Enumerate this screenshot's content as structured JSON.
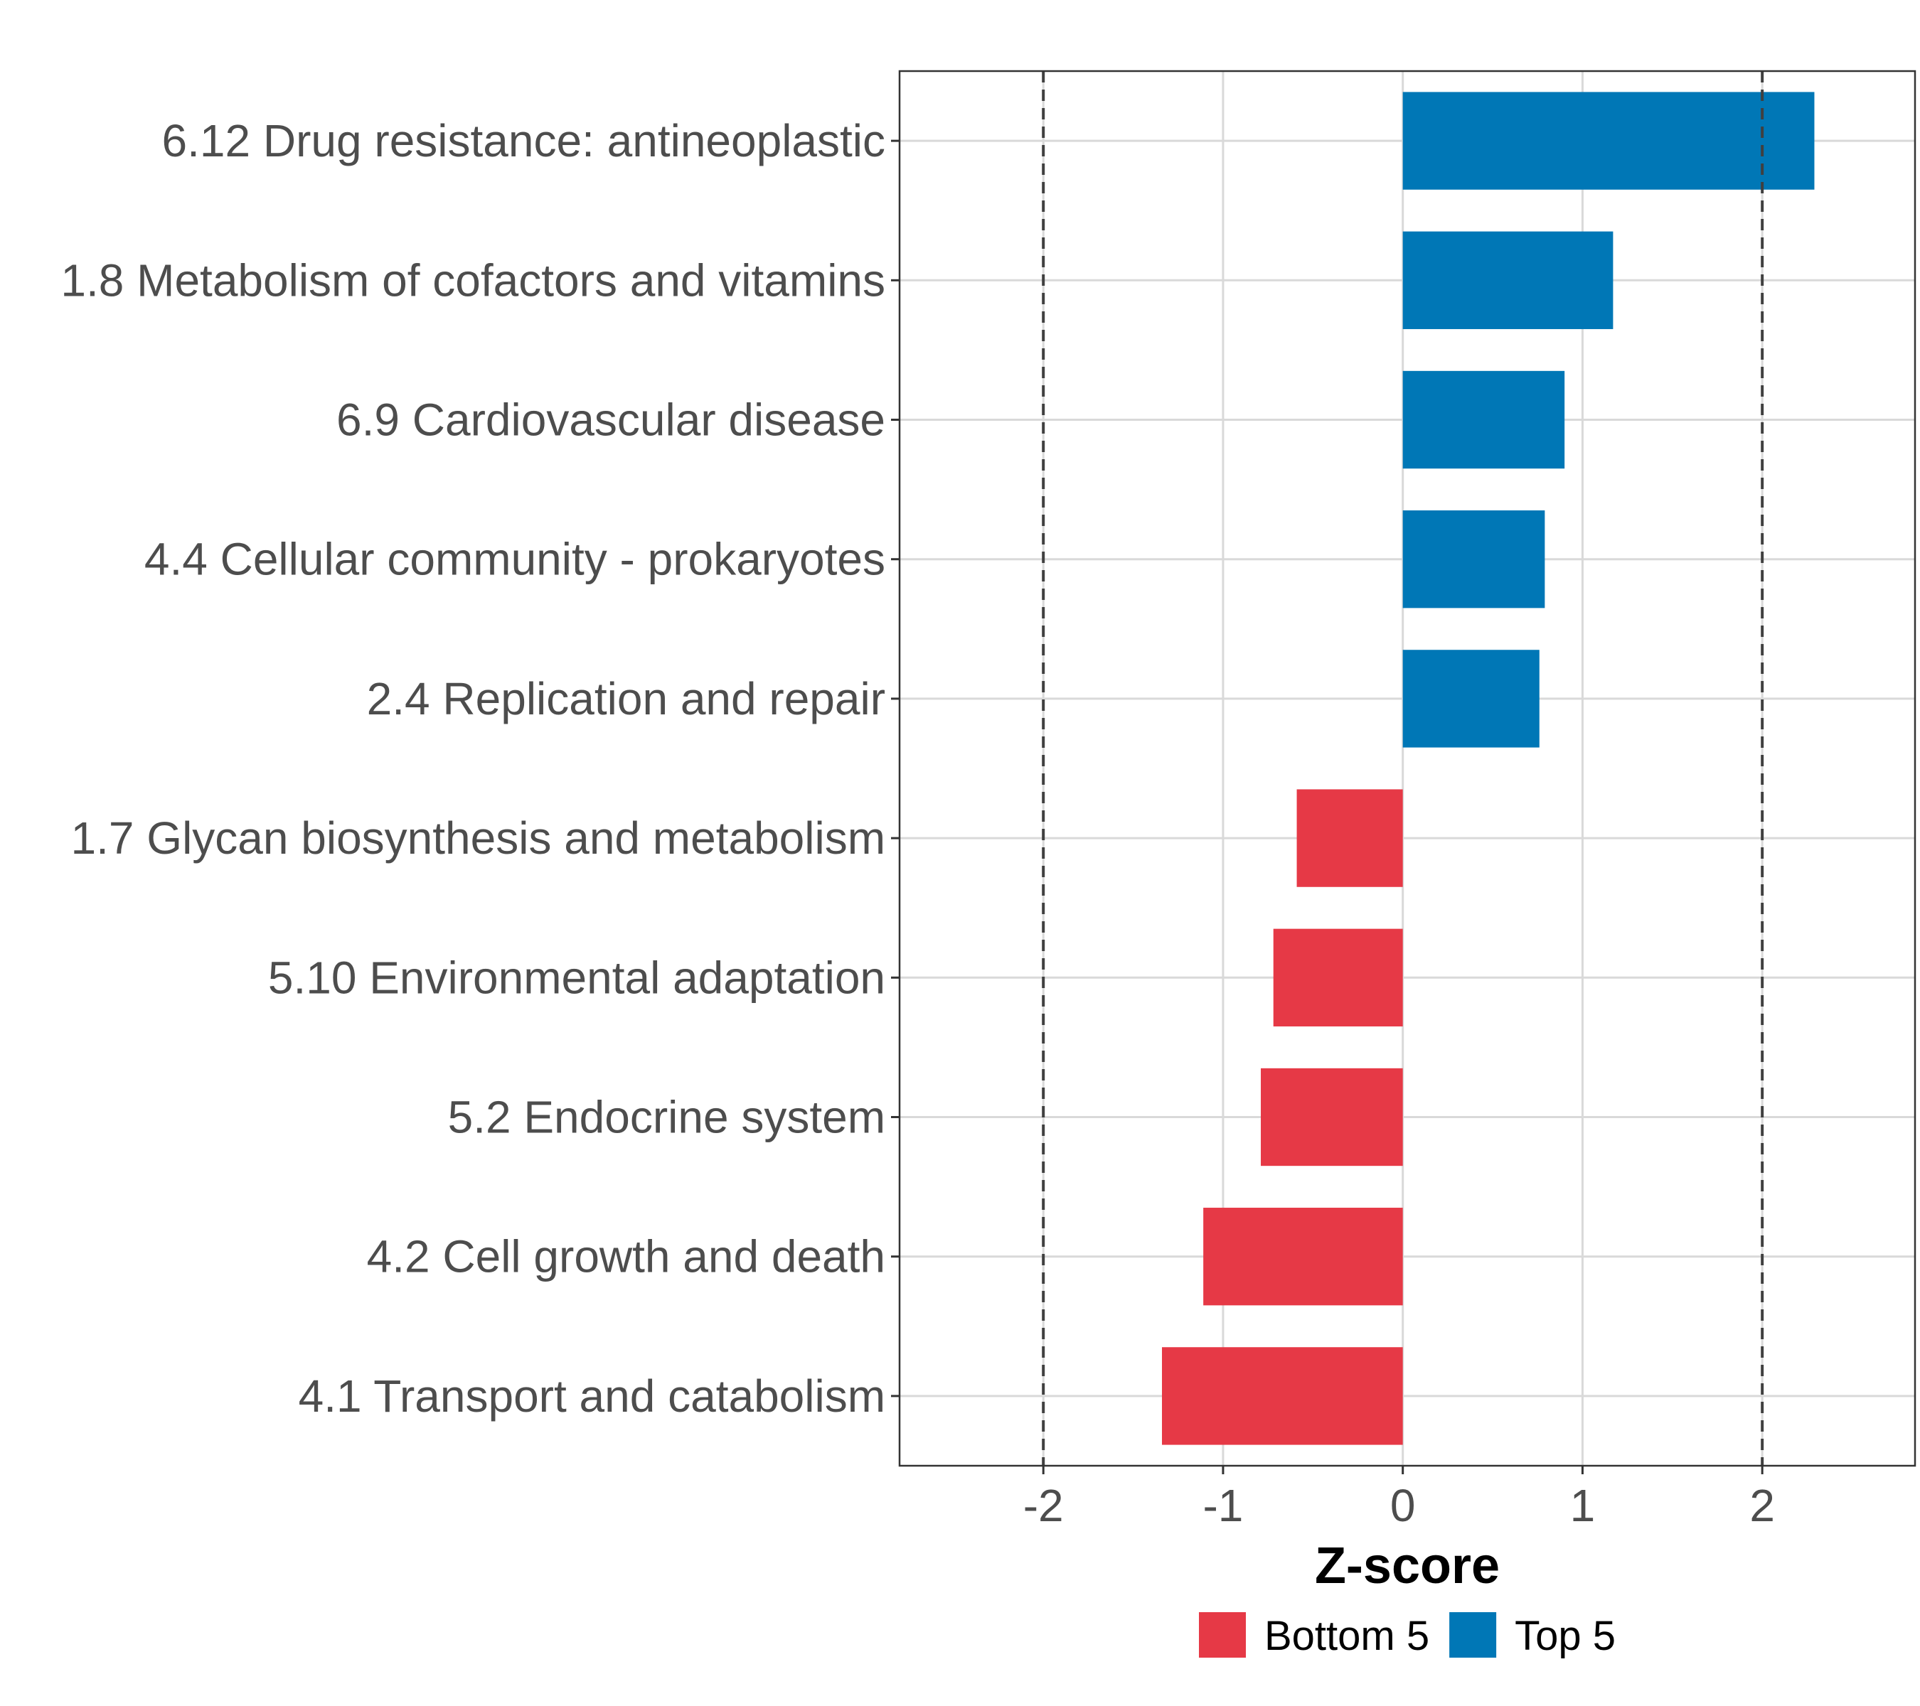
{
  "chart_data": {
    "type": "bar",
    "orientation": "horizontal",
    "title": "",
    "xlabel": "Z-score",
    "ylabel": "",
    "xlim": [
      -2.8,
      2.85
    ],
    "xticks": [
      -2,
      -1,
      0,
      1,
      2
    ],
    "xtick_labels": [
      "-2",
      "-1",
      "0",
      "1",
      "2"
    ],
    "reference_lines": [
      -2,
      2
    ],
    "grid": true,
    "legend_position": "bottom",
    "categories": [
      "6.12 Drug resistance: antineoplastic",
      "1.8 Metabolism of cofactors and vitamins",
      "6.9 Cardiovascular disease",
      "4.4 Cellular community - prokaryotes",
      "2.4 Replication and repair",
      "1.7 Glycan biosynthesis and metabolism",
      "5.10 Environmental adaptation",
      "5.2 Endocrine system",
      "4.2 Cell growth and death",
      "4.1 Transport and catabolism"
    ],
    "values": [
      2.29,
      1.17,
      0.9,
      0.79,
      0.76,
      -0.59,
      -0.72,
      -0.79,
      -1.11,
      -1.34
    ],
    "groups": [
      "Top 5",
      "Top 5",
      "Top 5",
      "Top 5",
      "Top 5",
      "Bottom 5",
      "Bottom 5",
      "Bottom 5",
      "Bottom 5",
      "Bottom 5"
    ],
    "legend": [
      {
        "name": "Bottom 5",
        "color": "#E63946"
      },
      {
        "name": "Top 5",
        "color": "#0077B6"
      }
    ],
    "colors": {
      "Top 5": "#0077B6",
      "Bottom 5": "#E63946",
      "grid": "#d9d9d9",
      "reference_line": "#404040",
      "panel_border": "#333333"
    }
  }
}
